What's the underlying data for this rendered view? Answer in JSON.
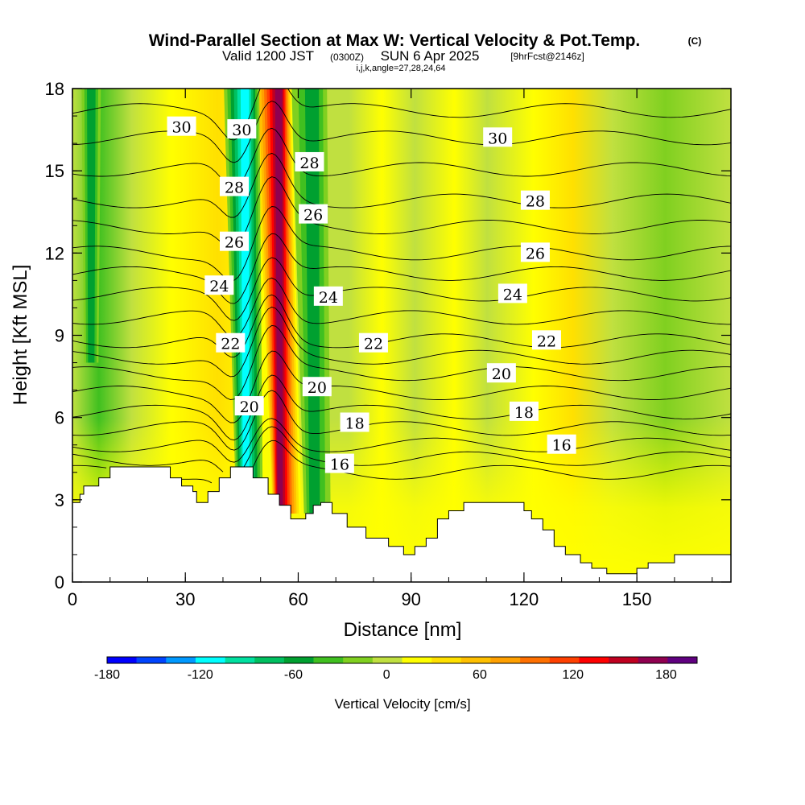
{
  "title": {
    "main": "Wind-Parallel Section at Max W: Vertical Velocity & Pot.Temp.",
    "copyright": "(C)",
    "valid_prefix": "Valid 1200 JST",
    "valid_utc": "(0300Z)",
    "valid_date": "SUN 6 Apr 2025",
    "forecast": "[9hrFcst@2146z]",
    "indices": "i,j,k,angle=27,28,24,64"
  },
  "chart_data": {
    "type": "heatmap",
    "xlabel": "Distance [nm]",
    "ylabel": "Height [Kft MSL]",
    "xlim": [
      0,
      175
    ],
    "ylim": [
      0,
      18
    ],
    "x_ticks": [
      0,
      30,
      60,
      90,
      120,
      150
    ],
    "y_ticks": [
      0,
      3,
      6,
      9,
      12,
      15,
      18
    ],
    "colorbar": {
      "label": "Vertical Velocity [cm/s]",
      "range": [
        -180,
        200
      ],
      "step": 20,
      "tick_values": [
        -180,
        -120,
        -60,
        0,
        60,
        120,
        180
      ],
      "colors": [
        "#0000ff",
        "#0044ff",
        "#0099ff",
        "#00ffff",
        "#00e0a0",
        "#00c060",
        "#00a030",
        "#40c020",
        "#80d020",
        "#c0e040",
        "#ffff00",
        "#ffe000",
        "#ffc000",
        "#ffa000",
        "#ff7000",
        "#ff4000",
        "#ff0000",
        "#c00020",
        "#900050",
        "#600080"
      ]
    },
    "vertical_velocity_features": [
      {
        "type": "updraft",
        "x_center": 55,
        "value": 180
      },
      {
        "type": "downdraft",
        "x_center": 46,
        "value": -120
      },
      {
        "type": "downdraft",
        "x_center": 64,
        "value": -60
      },
      {
        "type": "downdraft",
        "x_center": 5,
        "value": -60
      }
    ],
    "terrain": {
      "x": [
        0,
        2,
        3,
        7,
        10,
        17,
        26,
        29,
        32,
        33,
        36,
        39,
        42,
        48,
        52,
        55,
        58,
        62,
        64,
        66,
        69,
        73,
        78,
        84,
        88,
        91,
        94,
        97,
        100,
        104,
        110,
        116,
        120,
        122,
        125,
        128,
        131,
        135,
        138,
        142,
        145,
        150,
        153,
        160,
        167,
        170,
        175
      ],
      "height": [
        2.9,
        3.2,
        3.5,
        3.8,
        4.2,
        4.2,
        3.8,
        3.5,
        3.3,
        2.9,
        3.3,
        3.8,
        4.2,
        3.8,
        3.2,
        2.8,
        2.3,
        2.5,
        2.8,
        2.9,
        2.5,
        2.0,
        1.6,
        1.3,
        1.0,
        1.3,
        1.6,
        2.3,
        2.6,
        2.9,
        2.9,
        2.9,
        2.6,
        2.3,
        1.9,
        1.3,
        1.0,
        0.7,
        0.5,
        0.3,
        0.3,
        0.5,
        0.7,
        1.0,
        1.0,
        1.0,
        1.0
      ]
    },
    "potential_temperature_contours": [
      {
        "label": "30",
        "positions": [
          [
            29,
            16.6
          ],
          [
            45,
            16.5
          ],
          [
            113,
            16.2
          ]
        ]
      },
      {
        "label": "28",
        "positions": [
          [
            63,
            15.3
          ],
          [
            43,
            14.4
          ],
          [
            123,
            13.9
          ]
        ]
      },
      {
        "label": "26",
        "positions": [
          [
            64,
            13.4
          ],
          [
            43,
            12.4
          ],
          [
            123,
            12.0
          ]
        ]
      },
      {
        "label": "24",
        "positions": [
          [
            39,
            10.8
          ],
          [
            68,
            10.4
          ],
          [
            117,
            10.5
          ]
        ]
      },
      {
        "label": "22",
        "positions": [
          [
            42,
            8.7
          ],
          [
            80,
            8.7
          ],
          [
            126,
            8.8
          ]
        ]
      },
      {
        "label": "20",
        "positions": [
          [
            47,
            6.4
          ],
          [
            65,
            7.1
          ],
          [
            114,
            7.6
          ]
        ]
      },
      {
        "label": "18",
        "positions": [
          [
            75,
            5.8
          ],
          [
            120,
            6.2
          ]
        ]
      },
      {
        "label": "16",
        "positions": [
          [
            71,
            4.3
          ],
          [
            130,
            5.0
          ]
        ]
      }
    ]
  }
}
